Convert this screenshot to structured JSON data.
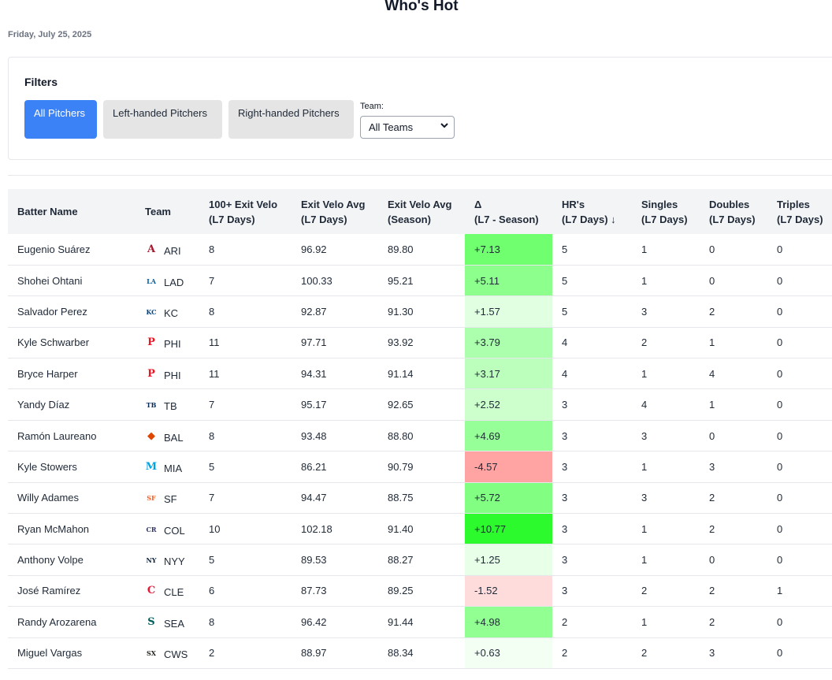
{
  "page": {
    "title": "Who's Hot",
    "date": "Friday, July 25, 2025"
  },
  "filters": {
    "title": "Filters",
    "buttons": [
      "All Pitchers",
      "Left-handed Pitchers",
      "Right-handed Pitchers"
    ],
    "active_button": "All Pitchers",
    "team_label": "Team:",
    "team_value": "All Teams"
  },
  "table": {
    "headers": [
      {
        "line1": "Batter Name",
        "line2": ""
      },
      {
        "line1": "Team",
        "line2": ""
      },
      {
        "line1": "100+ Exit Velo",
        "line2": "(L7 Days)"
      },
      {
        "line1": "Exit Velo Avg",
        "line2": "(L7 Days)"
      },
      {
        "line1": "Exit Velo Avg",
        "line2": "(Season)"
      },
      {
        "line1": "Δ",
        "line2": "(L7 - Season)"
      },
      {
        "line1": "HR's",
        "line2": "(L7 Days)",
        "sort": "↓"
      },
      {
        "line1": "Singles",
        "line2": "(L7 Days)"
      },
      {
        "line1": "Doubles",
        "line2": "(L7 Days)"
      },
      {
        "line1": "Triples",
        "line2": "(L7 Days)"
      }
    ],
    "rows": [
      {
        "name": "Eugenio Suárez",
        "team": "ARI",
        "logo": "diamondbacks-logo",
        "color": "#a71930",
        "ev100": "8",
        "evl7": "96.92",
        "evs": "89.80",
        "delta": "+7.13",
        "deltabg": "#6fff6f",
        "hr": "5",
        "singles": "1",
        "doubles": "0",
        "triples": "0"
      },
      {
        "name": "Shohei Ohtani",
        "team": "LAD",
        "logo": "dodgers-logo",
        "color": "#005a9c",
        "ev100": "7",
        "evl7": "100.33",
        "evs": "95.21",
        "delta": "+5.11",
        "deltabg": "#8cff8c",
        "hr": "5",
        "singles": "1",
        "doubles": "0",
        "triples": "0"
      },
      {
        "name": "Salvador Perez",
        "team": "KC",
        "logo": "royals-logo",
        "color": "#004687",
        "ev100": "8",
        "evl7": "92.87",
        "evs": "91.30",
        "delta": "+1.57",
        "deltabg": "#e1ffe1",
        "hr": "5",
        "singles": "3",
        "doubles": "2",
        "triples": "0"
      },
      {
        "name": "Kyle Schwarber",
        "team": "PHI",
        "logo": "phillies-logo",
        "color": "#e81828",
        "ev100": "11",
        "evl7": "97.71",
        "evs": "93.92",
        "delta": "+3.79",
        "deltabg": "#acffac",
        "hr": "4",
        "singles": "2",
        "doubles": "1",
        "triples": "0"
      },
      {
        "name": "Bryce Harper",
        "team": "PHI",
        "logo": "phillies-logo",
        "color": "#e81828",
        "ev100": "11",
        "evl7": "94.31",
        "evs": "91.14",
        "delta": "+3.17",
        "deltabg": "#bcffbc",
        "hr": "4",
        "singles": "1",
        "doubles": "4",
        "triples": "0"
      },
      {
        "name": "Yandy Díaz",
        "team": "TB",
        "logo": "rays-logo",
        "color": "#092c5c",
        "ev100": "7",
        "evl7": "95.17",
        "evs": "92.65",
        "delta": "+2.52",
        "deltabg": "#ccffcc",
        "hr": "3",
        "singles": "4",
        "doubles": "1",
        "triples": "0"
      },
      {
        "name": "Ramón Laureano",
        "team": "BAL",
        "logo": "orioles-logo",
        "color": "#df4601",
        "ev100": "8",
        "evl7": "93.48",
        "evs": "88.80",
        "delta": "+4.69",
        "deltabg": "#97ff97",
        "hr": "3",
        "singles": "3",
        "doubles": "0",
        "triples": "0"
      },
      {
        "name": "Kyle Stowers",
        "team": "MIA",
        "logo": "marlins-logo",
        "color": "#00a3e0",
        "ev100": "5",
        "evl7": "86.21",
        "evs": "90.79",
        "delta": "-4.57",
        "deltabg": "#ffa3a3",
        "hr": "3",
        "singles": "1",
        "doubles": "3",
        "triples": "0"
      },
      {
        "name": "Willy Adames",
        "team": "SF",
        "logo": "giants-logo",
        "color": "#fd5a1e",
        "ev100": "7",
        "evl7": "94.47",
        "evs": "88.75",
        "delta": "+5.72",
        "deltabg": "#82ff82",
        "hr": "3",
        "singles": "3",
        "doubles": "2",
        "triples": "0"
      },
      {
        "name": "Ryan McMahon",
        "team": "COL",
        "logo": "rockies-logo",
        "color": "#333366",
        "ev100": "10",
        "evl7": "102.18",
        "evs": "91.40",
        "delta": "+10.77",
        "deltabg": "#2dfa2d",
        "hr": "3",
        "singles": "1",
        "doubles": "2",
        "triples": "0"
      },
      {
        "name": "Anthony Volpe",
        "team": "NYY",
        "logo": "yankees-logo",
        "color": "#0c2340",
        "ev100": "5",
        "evl7": "89.53",
        "evs": "88.27",
        "delta": "+1.25",
        "deltabg": "#e8ffe8",
        "hr": "3",
        "singles": "1",
        "doubles": "0",
        "triples": "0"
      },
      {
        "name": "José Ramírez",
        "team": "CLE",
        "logo": "guardians-logo",
        "color": "#e31937",
        "ev100": "6",
        "evl7": "87.73",
        "evs": "89.25",
        "delta": "-1.52",
        "deltabg": "#ffdcdc",
        "hr": "3",
        "singles": "2",
        "doubles": "2",
        "triples": "1"
      },
      {
        "name": "Randy Arozarena",
        "team": "SEA",
        "logo": "mariners-logo",
        "color": "#005c5c",
        "ev100": "8",
        "evl7": "96.42",
        "evs": "91.44",
        "delta": "+4.98",
        "deltabg": "#92ff92",
        "hr": "2",
        "singles": "1",
        "doubles": "2",
        "triples": "0"
      },
      {
        "name": "Miguel Vargas",
        "team": "CWS",
        "logo": "white-sox-logo",
        "color": "#27251f",
        "ev100": "2",
        "evl7": "88.97",
        "evs": "88.34",
        "delta": "+0.63",
        "deltabg": "#f4fff4",
        "hr": "2",
        "singles": "2",
        "doubles": "3",
        "triples": "0"
      }
    ]
  }
}
